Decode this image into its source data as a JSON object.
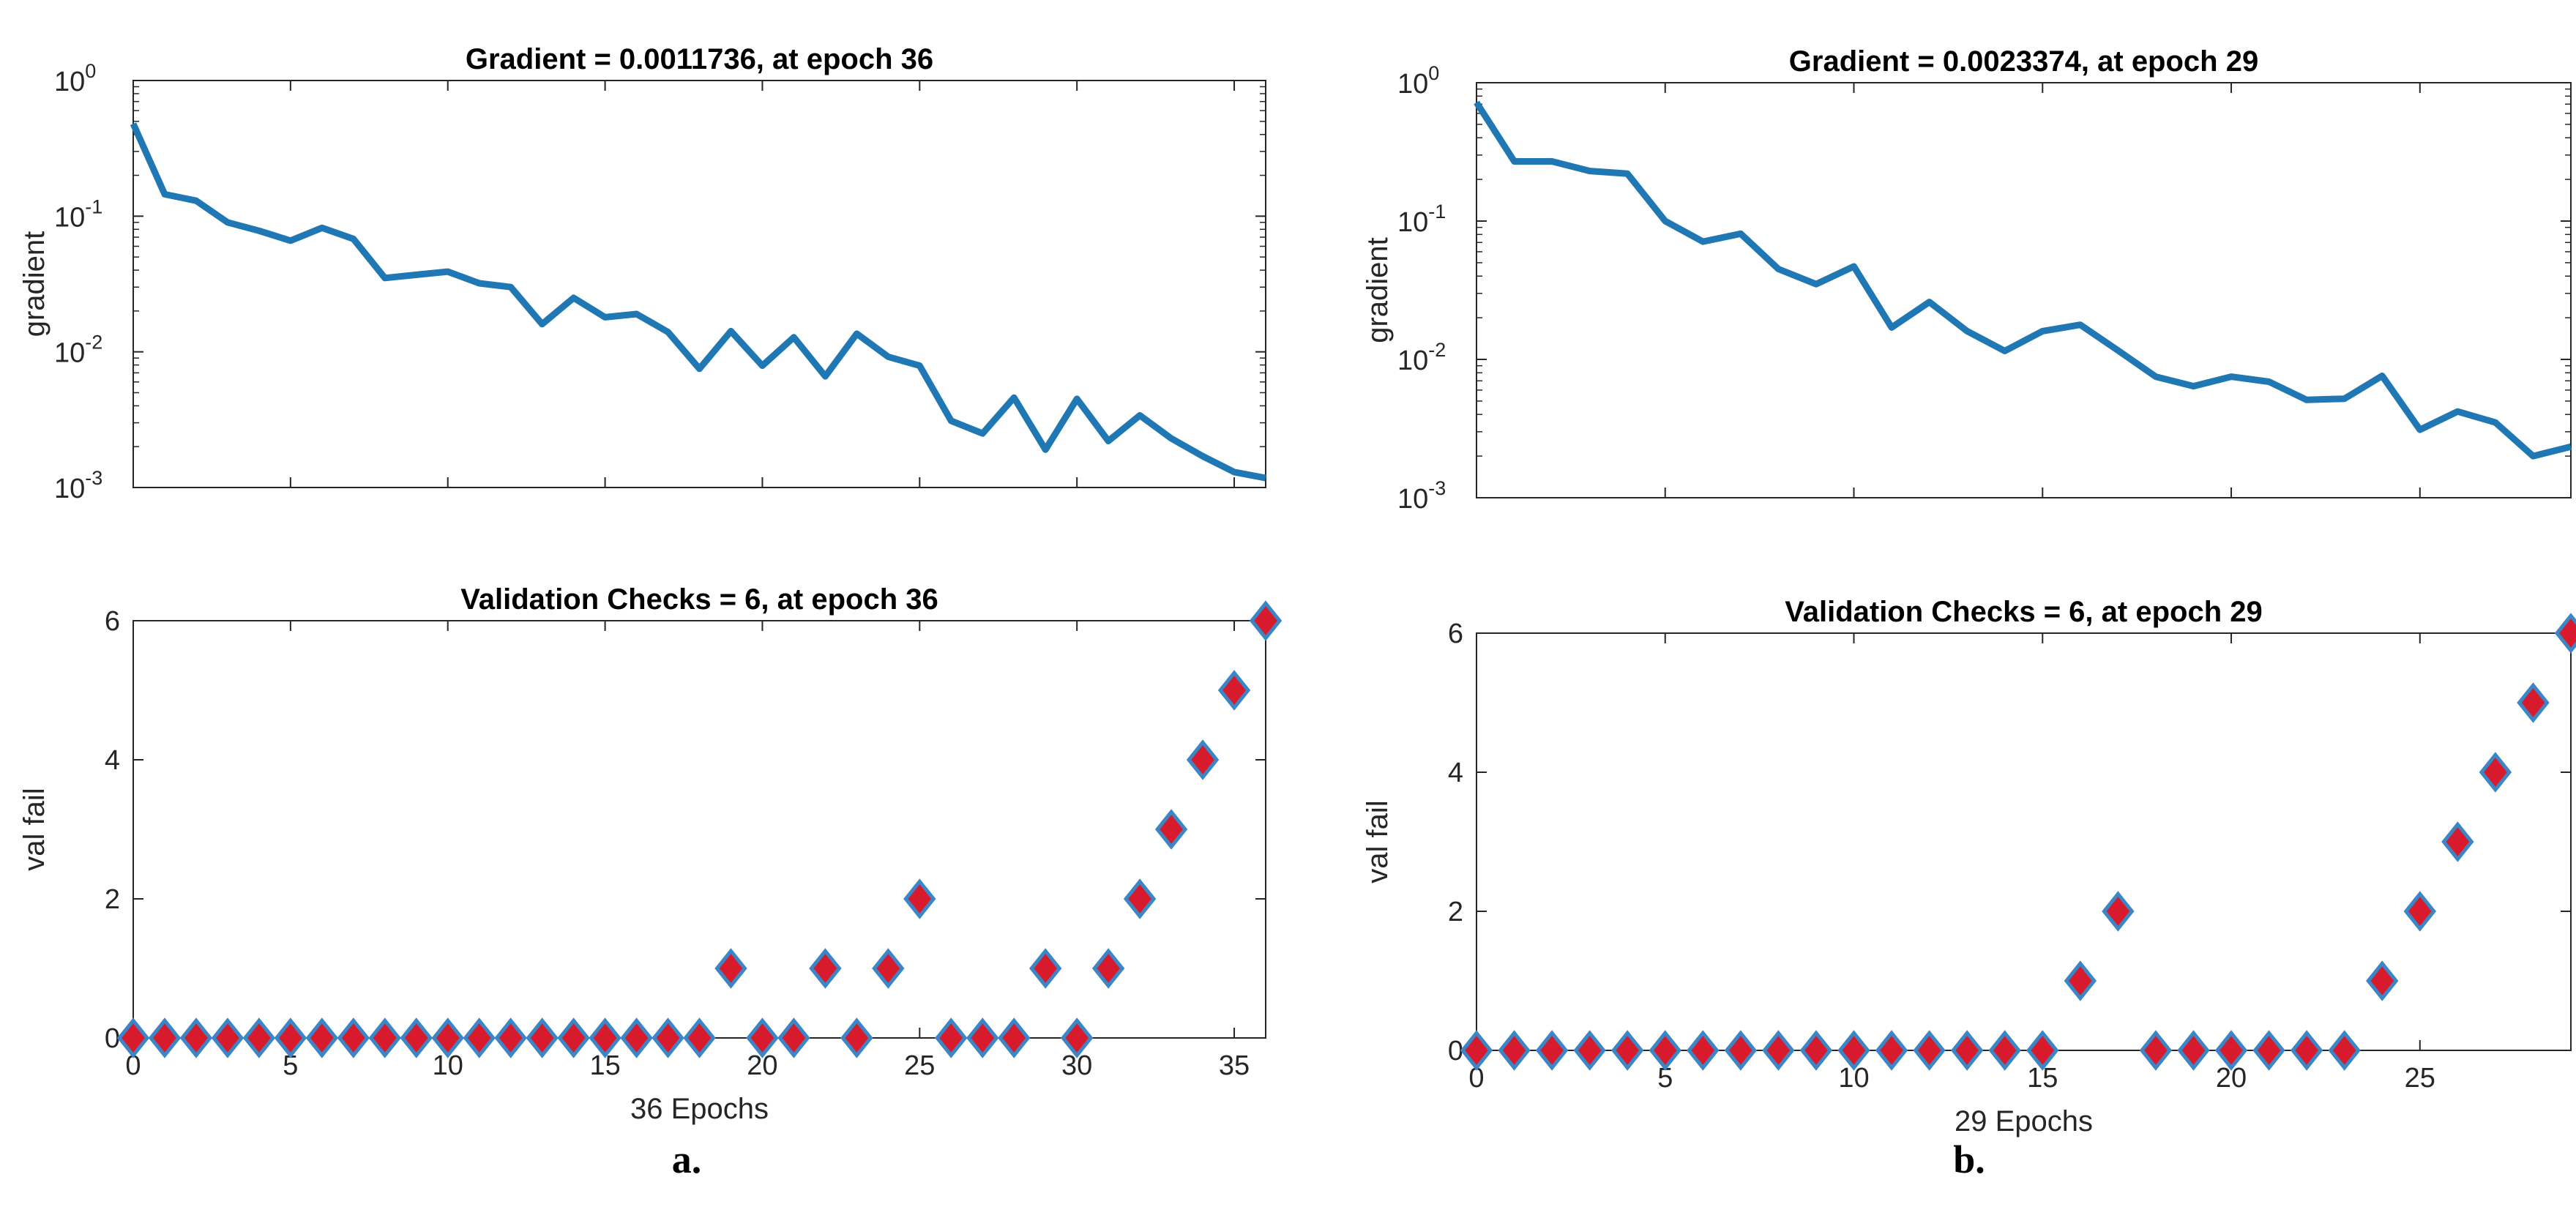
{
  "colors": {
    "line": "#1f77b4",
    "marker_fill": "#d81b2c",
    "marker_edge": "#3b86c6",
    "axis": "#262626",
    "background": "#ffffff"
  },
  "chart_data": [
    {
      "panel_label": "a.",
      "type": "line",
      "title": "Gradient = 0.0011736, at epoch 36",
      "xlabel": "",
      "ylabel": "gradient",
      "yscale": "log",
      "xlim": [
        0,
        36
      ],
      "ylim": [
        0.001,
        1
      ],
      "ytick_labels": [
        {
          "base": "10",
          "exp": "0"
        },
        {
          "base": "10",
          "exp": "-1"
        },
        {
          "base": "10",
          "exp": "-2"
        },
        {
          "base": "10",
          "exp": "-3"
        }
      ],
      "x": [
        0,
        1,
        2,
        3,
        4,
        5,
        6,
        7,
        8,
        9,
        10,
        11,
        12,
        13,
        14,
        15,
        16,
        17,
        18,
        19,
        20,
        21,
        22,
        23,
        24,
        25,
        26,
        27,
        28,
        29,
        30,
        31,
        32,
        33,
        34,
        35,
        36
      ],
      "values": [
        0.48,
        0.145,
        0.13,
        0.09,
        0.078,
        0.066,
        0.082,
        0.068,
        0.035,
        0.037,
        0.039,
        0.032,
        0.03,
        0.016,
        0.025,
        0.018,
        0.019,
        0.014,
        0.0075,
        0.0142,
        0.0079,
        0.0128,
        0.0066,
        0.0136,
        0.0092,
        0.0079,
        0.0031,
        0.0025,
        0.0046,
        0.0019,
        0.0045,
        0.0022,
        0.0034,
        0.0023,
        0.0017,
        0.0013,
        0.0011736
      ]
    },
    {
      "panel_label": "a.",
      "type": "scatter",
      "title": "Validation Checks = 6, at epoch 36",
      "xlabel": "36 Epochs",
      "ylabel": "val fail",
      "xlim": [
        0,
        36
      ],
      "ylim": [
        0,
        6
      ],
      "xticks": [
        0,
        5,
        10,
        15,
        20,
        25,
        30,
        35
      ],
      "yticks": [
        0,
        2,
        4,
        6
      ],
      "x": [
        0,
        1,
        2,
        3,
        4,
        5,
        6,
        7,
        8,
        9,
        10,
        11,
        12,
        13,
        14,
        15,
        16,
        17,
        18,
        19,
        20,
        21,
        22,
        23,
        24,
        25,
        26,
        27,
        28,
        29,
        30,
        31,
        32,
        33,
        34,
        35,
        36
      ],
      "values": [
        0,
        0,
        0,
        0,
        0,
        0,
        0,
        0,
        0,
        0,
        0,
        0,
        0,
        0,
        0,
        0,
        0,
        0,
        0,
        1,
        0,
        0,
        1,
        0,
        1,
        2,
        0,
        0,
        0,
        1,
        0,
        1,
        2,
        3,
        4,
        5,
        6
      ]
    },
    {
      "panel_label": "b.",
      "type": "line",
      "title": "Gradient = 0.0023374, at epoch 29",
      "xlabel": "",
      "ylabel": "gradient",
      "yscale": "log",
      "xlim": [
        0,
        29
      ],
      "ylim": [
        0.001,
        1
      ],
      "ytick_labels": [
        {
          "base": "10",
          "exp": "0"
        },
        {
          "base": "10",
          "exp": "-1"
        },
        {
          "base": "10",
          "exp": "-2"
        },
        {
          "base": "10",
          "exp": "-3"
        }
      ],
      "x": [
        0,
        1,
        2,
        3,
        4,
        5,
        6,
        7,
        8,
        9,
        10,
        11,
        12,
        13,
        14,
        15,
        16,
        17,
        18,
        19,
        20,
        21,
        22,
        23,
        24,
        25,
        26,
        27,
        28,
        29
      ],
      "values": [
        0.72,
        0.27,
        0.27,
        0.23,
        0.22,
        0.1,
        0.071,
        0.081,
        0.045,
        0.035,
        0.047,
        0.017,
        0.026,
        0.016,
        0.0115,
        0.016,
        0.0178,
        0.0116,
        0.0075,
        0.0064,
        0.0075,
        0.0069,
        0.0051,
        0.0052,
        0.0076,
        0.0031,
        0.0042,
        0.0035,
        0.002,
        0.0023374
      ]
    },
    {
      "panel_label": "b.",
      "type": "scatter",
      "title": "Validation Checks = 6, at epoch 29",
      "xlabel": "29 Epochs",
      "ylabel": "val fail",
      "xlim": [
        0,
        29
      ],
      "ylim": [
        0,
        6
      ],
      "xticks": [
        0,
        5,
        10,
        15,
        20,
        25
      ],
      "yticks": [
        0,
        2,
        4,
        6
      ],
      "x": [
        0,
        1,
        2,
        3,
        4,
        5,
        6,
        7,
        8,
        9,
        10,
        11,
        12,
        13,
        14,
        15,
        16,
        17,
        18,
        19,
        20,
        21,
        22,
        23,
        24,
        25,
        26,
        27,
        28,
        29
      ],
      "values": [
        0,
        0,
        0,
        0,
        0,
        0,
        0,
        0,
        0,
        0,
        0,
        0,
        0,
        0,
        0,
        0,
        1,
        2,
        0,
        0,
        0,
        0,
        0,
        0,
        1,
        2,
        3,
        4,
        5,
        6
      ]
    }
  ]
}
